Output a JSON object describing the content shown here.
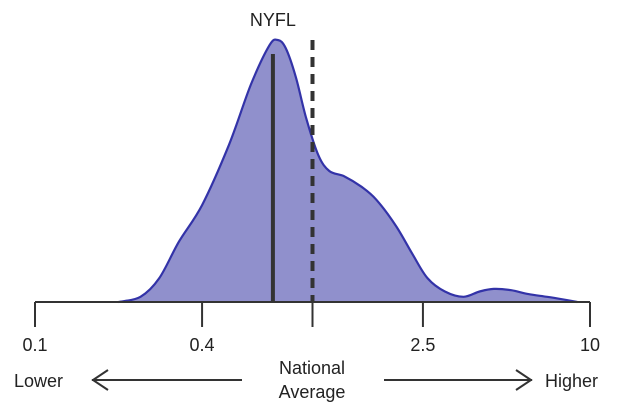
{
  "chart_data": {
    "type": "area",
    "xscale": "log",
    "xlim": [
      0.1,
      10
    ],
    "ylim": [
      0,
      1
    ],
    "x": [
      0.2,
      0.24,
      0.28,
      0.33,
      0.4,
      0.5,
      0.6,
      0.7,
      0.75,
      0.8,
      0.87,
      0.95,
      1.05,
      1.15,
      1.3,
      1.5,
      1.7,
      2.0,
      2.3,
      2.6,
      3.0,
      3.5,
      4.0,
      4.5,
      5.2,
      6.0,
      7.0,
      8.0,
      9.0
    ],
    "y": [
      0.0,
      0.02,
      0.09,
      0.23,
      0.37,
      0.6,
      0.83,
      0.98,
      1.0,
      0.97,
      0.86,
      0.7,
      0.56,
      0.5,
      0.48,
      0.44,
      0.39,
      0.29,
      0.18,
      0.09,
      0.04,
      0.02,
      0.04,
      0.05,
      0.045,
      0.03,
      0.02,
      0.01,
      0.0
    ],
    "fill_color": "#9090CC",
    "line_color": "#3333A8",
    "ticks": [
      {
        "value": 0.1,
        "label": "0.1"
      },
      {
        "value": 0.4,
        "label": "0.4"
      },
      {
        "value": 1.0,
        "label": ""
      },
      {
        "value": 2.5,
        "label": "2.5"
      },
      {
        "value": 10,
        "label": "10"
      }
    ],
    "markers": [
      {
        "name": "NYFL",
        "value": 0.72,
        "style": "solid"
      },
      {
        "name": "",
        "value": 1.0,
        "style": "dashed"
      }
    ],
    "axis_text": {
      "left": "Lower",
      "right": "Higher",
      "middle_line1": "National",
      "middle_line2": "Average"
    },
    "grid": false
  }
}
